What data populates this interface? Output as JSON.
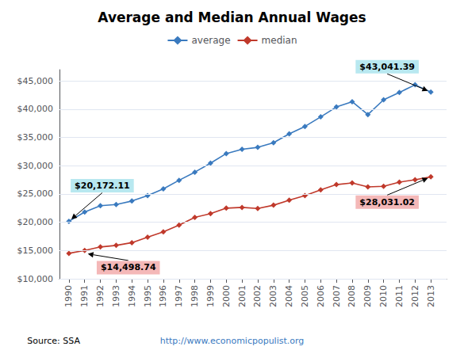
{
  "chart_data": {
    "type": "line",
    "title": "Average and Median Annual Wages",
    "x": [
      1990,
      1991,
      1992,
      1993,
      1994,
      1995,
      1996,
      1997,
      1998,
      1999,
      2000,
      2001,
      2002,
      2003,
      2004,
      2005,
      2006,
      2007,
      2008,
      2009,
      2010,
      2011,
      2012,
      2013
    ],
    "series": [
      {
        "name": "average",
        "color": "#3a7abf",
        "values": [
          20172.11,
          21811.6,
          22935.42,
          23132.67,
          23753.53,
          24705.66,
          25913.9,
          27426.0,
          28861.44,
          30469.84,
          32154.82,
          32921.92,
          33252.09,
          34064.95,
          35648.55,
          36952.94,
          38651.41,
          40405.48,
          41334.97,
          39054.36,
          41673.83,
          42979.61,
          44321.67,
          43041.39
        ]
      },
      {
        "name": "median",
        "color": "#c0392b",
        "values": [
          14498.74,
          15013.52,
          15628.48,
          15906.75,
          16392.32,
          17372.09,
          18311.93,
          19491.92,
          20858.05,
          21537.61,
          22497.16,
          22629.01,
          22431.97,
          23017.12,
          23895.36,
          24714.64,
          25737.59,
          26663.48,
          26965.22,
          26261.29,
          26363.55,
          27099.86,
          27519.1,
          28031.02
        ]
      }
    ],
    "marker": "diamond",
    "xlim": [
      1989.4,
      2014.0
    ],
    "xticks": [
      1990,
      1991,
      1992,
      1993,
      1994,
      1995,
      1996,
      1997,
      1998,
      1999,
      2000,
      2001,
      2002,
      2003,
      2004,
      2005,
      2006,
      2007,
      2008,
      2009,
      2010,
      2011,
      2012,
      2013
    ],
    "ylim": [
      10000,
      47000
    ],
    "yticks": [
      {
        "value": 10000,
        "label": "$10,000"
      },
      {
        "value": 15000,
        "label": "$15,000"
      },
      {
        "value": 20000,
        "label": "$20,000"
      },
      {
        "value": 25000,
        "label": "$25,000"
      },
      {
        "value": 30000,
        "label": "$30,000"
      },
      {
        "value": 35000,
        "label": "$35,000"
      },
      {
        "value": 40000,
        "label": "$40,000"
      },
      {
        "value": 45000,
        "label": "$45,000"
      }
    ],
    "grid": true,
    "legend": "top",
    "annotations": [
      {
        "text": "$20,172.11",
        "x": 1990,
        "y": 20172.11,
        "color": "#b8e8f0"
      },
      {
        "text": "$43,041.39",
        "x": 2013,
        "y": 43041.39,
        "color": "#b8e8f0"
      },
      {
        "text": "$14,498.74",
        "x": 1991,
        "y": 14498.74,
        "color": "#f4b8b8"
      },
      {
        "text": "$28,031.02",
        "x": 2013,
        "y": 28031.02,
        "color": "#f4b8b8"
      }
    ],
    "source": "Source: SSA",
    "url": "http://www.economicpopulist.org"
  }
}
